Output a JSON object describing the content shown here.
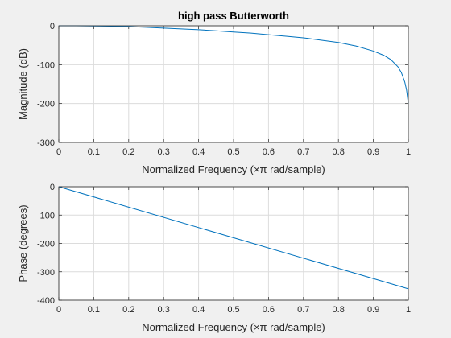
{
  "chart_data": [
    {
      "type": "line",
      "title": "high pass Butterworth",
      "xlabel": "Normalized Frequency  (×π rad/sample)",
      "ylabel": "Magnitude (dB)",
      "xlim": [
        0,
        1
      ],
      "ylim": [
        -300,
        0
      ],
      "xticks": [
        "0",
        "0.1",
        "0.2",
        "0.3",
        "0.4",
        "0.5",
        "0.6",
        "0.7",
        "0.8",
        "0.9",
        "1"
      ],
      "yticks": [
        "0",
        "-100",
        "-200",
        "-300"
      ],
      "grid": true,
      "color": "#0072bd",
      "series": [
        {
          "x": [
            0,
            0.05,
            0.1,
            0.15,
            0.2,
            0.25,
            0.3,
            0.35,
            0.4,
            0.45,
            0.5,
            0.55,
            0.6,
            0.65,
            0.7,
            0.75,
            0.8,
            0.85,
            0.9,
            0.93,
            0.95,
            0.97,
            0.98,
            0.99,
            0.995,
            1.0
          ],
          "values": [
            0,
            -0.1,
            -0.5,
            -1,
            -2,
            -4,
            -6,
            -8,
            -10,
            -13,
            -16,
            -19,
            -23,
            -27,
            -31,
            -37,
            -43,
            -52,
            -65,
            -76,
            -87,
            -105,
            -120,
            -145,
            -165,
            -200
          ]
        }
      ]
    },
    {
      "type": "line",
      "title": "",
      "xlabel": "Normalized Frequency  (×π rad/sample)",
      "ylabel": "Phase (degrees)",
      "xlim": [
        0,
        1
      ],
      "ylim": [
        -400,
        0
      ],
      "xticks": [
        "0",
        "0.1",
        "0.2",
        "0.3",
        "0.4",
        "0.5",
        "0.6",
        "0.7",
        "0.8",
        "0.9",
        "1"
      ],
      "yticks": [
        "0",
        "-100",
        "-200",
        "-300",
        "-400"
      ],
      "grid": true,
      "color": "#0072bd",
      "series": [
        {
          "x": [
            0,
            1
          ],
          "values": [
            0,
            -360
          ]
        }
      ]
    }
  ]
}
